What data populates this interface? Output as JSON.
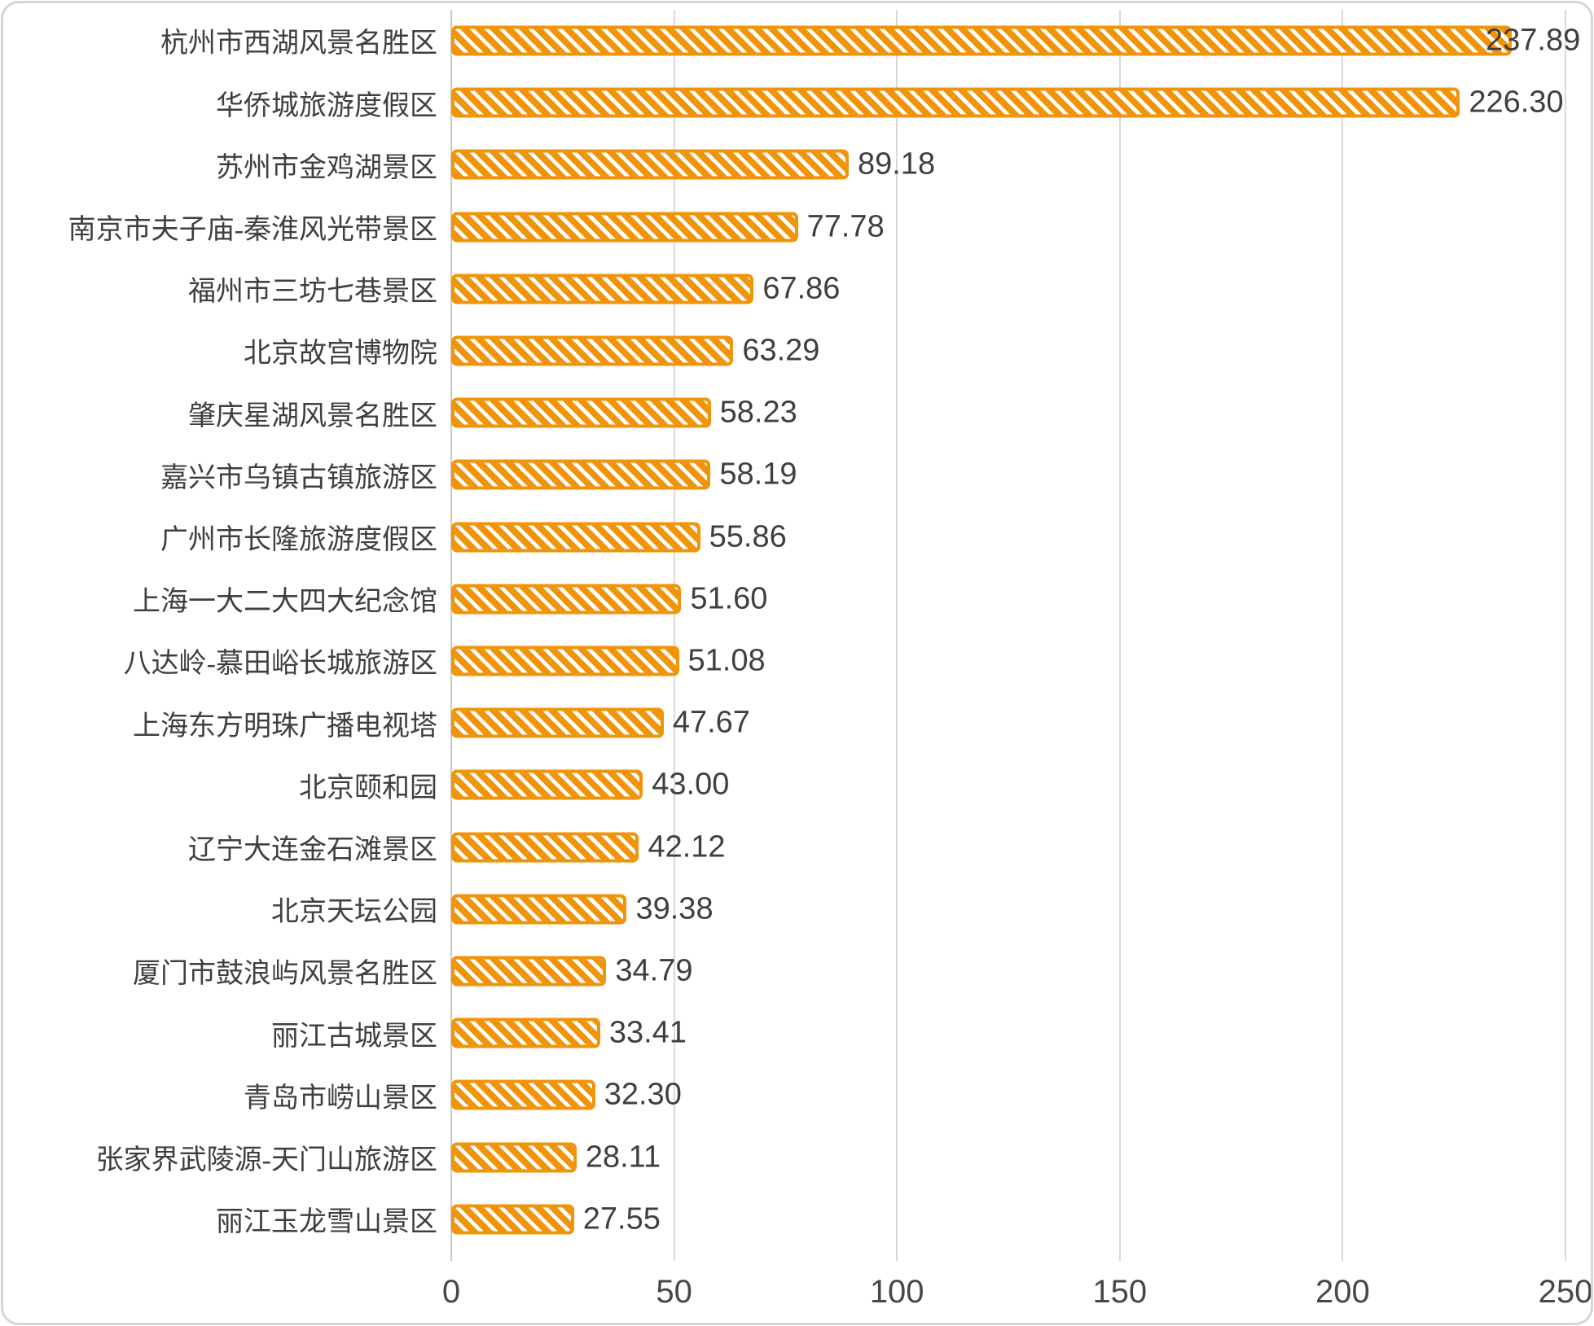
{
  "chart_data": {
    "type": "bar",
    "orientation": "horizontal",
    "title": "",
    "xlabel": "",
    "ylabel": "",
    "categories": [
      "杭州市西湖风景名胜区",
      "华侨城旅游度假区",
      "苏州市金鸡湖景区",
      "南京市夫子庙-秦淮风光带景区",
      "福州市三坊七巷景区",
      "北京故宫博物院",
      "肇庆星湖风景名胜区",
      "嘉兴市乌镇古镇旅游区",
      "广州市长隆旅游度假区",
      "上海一大二大四大纪念馆",
      "八达岭-慕田峪长城旅游区",
      "上海东方明珠广播电视塔",
      "北京颐和园",
      "辽宁大连金石滩景区",
      "北京天坛公园",
      "厦门市鼓浪屿风景名胜区",
      "丽江古城景区",
      "青岛市崂山景区",
      "张家界武陵源-天门山旅游区",
      "丽江玉龙雪山景区"
    ],
    "values": [
      237.89,
      226.3,
      89.18,
      77.78,
      67.86,
      63.29,
      58.23,
      58.19,
      55.86,
      51.6,
      51.08,
      47.67,
      43.0,
      42.12,
      39.38,
      34.79,
      33.41,
      32.3,
      28.11,
      27.55
    ],
    "value_labels": [
      "237.89",
      "226.30",
      "89.18",
      "77.78",
      "67.86",
      "63.29",
      "58.23",
      "58.19",
      "55.86",
      "51.60",
      "51.08",
      "47.67",
      "43.00",
      "42.12",
      "39.38",
      "34.79",
      "33.41",
      "32.30",
      "28.11",
      "27.55"
    ],
    "xlim": [
      0,
      250
    ],
    "x_ticks": [
      0,
      50,
      100,
      150,
      200,
      250
    ],
    "x_tick_labels": [
      "0",
      "50",
      "100",
      "150",
      "200",
      "250"
    ],
    "grid": "vertical-gridlines-on",
    "legend": "none",
    "bar_pattern": "white-diagonal-stripes-on-orange",
    "colors": {
      "bar": "#F09409",
      "gridline": "#D9D9D9",
      "axis_line": "#C9C9C9",
      "label_text": "#3F3F3F",
      "tick_text": "#474747",
      "frame_border": "#D7D4D4",
      "background": "#FFFFFF"
    }
  }
}
